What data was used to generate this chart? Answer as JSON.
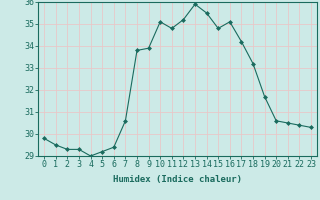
{
  "x": [
    0,
    1,
    2,
    3,
    4,
    5,
    6,
    7,
    8,
    9,
    10,
    11,
    12,
    13,
    14,
    15,
    16,
    17,
    18,
    19,
    20,
    21,
    22,
    23
  ],
  "y": [
    29.8,
    29.5,
    29.3,
    29.3,
    29.0,
    29.2,
    29.4,
    30.6,
    33.8,
    33.9,
    35.1,
    34.8,
    35.2,
    35.9,
    35.5,
    34.8,
    35.1,
    34.2,
    33.2,
    31.7,
    30.6,
    30.5,
    30.4,
    30.3
  ],
  "line_color": "#1a6b5e",
  "marker": "D",
  "marker_size": 2.0,
  "bg_color": "#cceae7",
  "grid_color": "#e8c8c8",
  "xlabel": "Humidex (Indice chaleur)",
  "ylim": [
    29,
    36
  ],
  "xlim_min": -0.5,
  "xlim_max": 23.5,
  "yticks": [
    29,
    30,
    31,
    32,
    33,
    34,
    35,
    36
  ],
  "xticks": [
    0,
    1,
    2,
    3,
    4,
    5,
    6,
    7,
    8,
    9,
    10,
    11,
    12,
    13,
    14,
    15,
    16,
    17,
    18,
    19,
    20,
    21,
    22,
    23
  ],
  "axis_label_fontsize": 6.5,
  "tick_fontsize": 6.0
}
